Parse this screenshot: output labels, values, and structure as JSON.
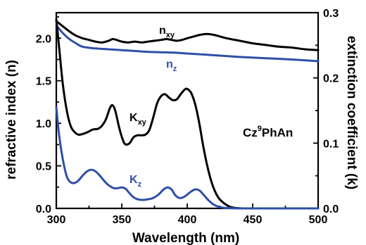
{
  "chart_data": {
    "type": "line",
    "title": "",
    "xlabel": "Wavelength (nm)",
    "ylabel_left": "refractive index (n)",
    "ylabel_right": "extinction coefficient (k)",
    "xlim": [
      300,
      500
    ],
    "ylim_left": [
      0,
      2.3
    ],
    "ylim_right": [
      0,
      0.3
    ],
    "xticks": [
      300,
      350,
      400,
      450,
      500
    ],
    "yticks_left": [
      "0.0",
      "0.5",
      "1.0",
      "1.5",
      "2.0"
    ],
    "yticks_right": [
      "0.0",
      "0.1",
      "0.2",
      "0.3"
    ],
    "grid": false,
    "legend": "none",
    "annotation": {
      "base": "Cz",
      "sup": "9",
      "rest": "PhAn"
    },
    "series": [
      {
        "name": "nxy",
        "label_main": "n",
        "label_sub": "xy",
        "axis": "left",
        "color": "#000000",
        "points": [
          [
            300,
            2.2
          ],
          [
            305,
            2.14
          ],
          [
            310,
            2.08
          ],
          [
            315,
            2.03
          ],
          [
            320,
            2.0
          ],
          [
            325,
            1.98
          ],
          [
            330,
            1.96
          ],
          [
            335,
            1.95
          ],
          [
            340,
            1.97
          ],
          [
            343,
            1.99
          ],
          [
            346,
            1.98
          ],
          [
            350,
            1.96
          ],
          [
            355,
            1.95
          ],
          [
            360,
            1.96
          ],
          [
            365,
            1.95
          ],
          [
            370,
            1.96
          ],
          [
            375,
            1.97
          ],
          [
            380,
            1.98
          ],
          [
            384,
            1.99
          ],
          [
            388,
            1.98
          ],
          [
            392,
            1.97
          ],
          [
            396,
            1.98
          ],
          [
            400,
            2.0
          ],
          [
            405,
            2.02
          ],
          [
            410,
            2.04
          ],
          [
            415,
            2.05
          ],
          [
            420,
            2.04
          ],
          [
            425,
            2.02
          ],
          [
            430,
            2.0
          ],
          [
            440,
            1.97
          ],
          [
            450,
            1.94
          ],
          [
            460,
            1.92
          ],
          [
            470,
            1.9
          ],
          [
            480,
            1.89
          ],
          [
            490,
            1.87
          ],
          [
            500,
            1.86
          ]
        ]
      },
      {
        "name": "nz",
        "label_main": "n",
        "label_sub": "z",
        "axis": "left",
        "color": "#2e4fa8",
        "points": [
          [
            300,
            2.15
          ],
          [
            305,
            2.06
          ],
          [
            310,
            1.99
          ],
          [
            315,
            1.94
          ],
          [
            320,
            1.9
          ],
          [
            330,
            1.88
          ],
          [
            340,
            1.87
          ],
          [
            350,
            1.86
          ],
          [
            360,
            1.85
          ],
          [
            370,
            1.84
          ],
          [
            380,
            1.835
          ],
          [
            390,
            1.83
          ],
          [
            400,
            1.82
          ],
          [
            420,
            1.8
          ],
          [
            440,
            1.78
          ],
          [
            460,
            1.765
          ],
          [
            480,
            1.75
          ],
          [
            500,
            1.73
          ]
        ]
      },
      {
        "name": "Kxy",
        "label_main": "K",
        "label_sub": "xy",
        "axis": "right",
        "color": "#000000",
        "points": [
          [
            300,
            0.29
          ],
          [
            302,
            0.25
          ],
          [
            305,
            0.19
          ],
          [
            308,
            0.15
          ],
          [
            311,
            0.126
          ],
          [
            314,
            0.117
          ],
          [
            317,
            0.113
          ],
          [
            320,
            0.114
          ],
          [
            324,
            0.117
          ],
          [
            328,
            0.121
          ],
          [
            332,
            0.122
          ],
          [
            335,
            0.127
          ],
          [
            338,
            0.137
          ],
          [
            341,
            0.154
          ],
          [
            343,
            0.158
          ],
          [
            345,
            0.15
          ],
          [
            348,
            0.124
          ],
          [
            351,
            0.104
          ],
          [
            353,
            0.098
          ],
          [
            356,
            0.1
          ],
          [
            359,
            0.109
          ],
          [
            362,
            0.112
          ],
          [
            365,
            0.112
          ],
          [
            368,
            0.113
          ],
          [
            371,
            0.12
          ],
          [
            374,
            0.139
          ],
          [
            377,
            0.161
          ],
          [
            380,
            0.172
          ],
          [
            383,
            0.175
          ],
          [
            386,
            0.17
          ],
          [
            389,
            0.166
          ],
          [
            392,
            0.167
          ],
          [
            395,
            0.175
          ],
          [
            398,
            0.182
          ],
          [
            400,
            0.183
          ],
          [
            403,
            0.177
          ],
          [
            406,
            0.16
          ],
          [
            409,
            0.133
          ],
          [
            412,
            0.098
          ],
          [
            415,
            0.068
          ],
          [
            418,
            0.044
          ],
          [
            421,
            0.027
          ],
          [
            424,
            0.016
          ],
          [
            428,
            0.008
          ],
          [
            432,
            0.003
          ],
          [
            436,
            0.001
          ],
          [
            440,
            0.0003
          ],
          [
            445,
            0.0
          ],
          [
            450,
            0.0
          ],
          [
            460,
            0.0
          ],
          [
            480,
            0.0
          ],
          [
            500,
            0.0
          ]
        ]
      },
      {
        "name": "Kz",
        "label_main": "K",
        "label_sub": "z",
        "axis": "right",
        "color": "#2e4fa8",
        "points": [
          [
            300,
            0.155
          ],
          [
            302,
            0.115
          ],
          [
            305,
            0.075
          ],
          [
            308,
            0.049
          ],
          [
            311,
            0.04
          ],
          [
            314,
            0.039
          ],
          [
            317,
            0.043
          ],
          [
            320,
            0.05
          ],
          [
            323,
            0.056
          ],
          [
            326,
            0.059
          ],
          [
            329,
            0.058
          ],
          [
            332,
            0.053
          ],
          [
            335,
            0.046
          ],
          [
            338,
            0.039
          ],
          [
            341,
            0.034
          ],
          [
            344,
            0.031
          ],
          [
            347,
            0.031
          ],
          [
            350,
            0.032
          ],
          [
            353,
            0.03
          ],
          [
            356,
            0.023
          ],
          [
            359,
            0.017
          ],
          [
            362,
            0.014
          ],
          [
            366,
            0.013
          ],
          [
            370,
            0.014
          ],
          [
            374,
            0.016
          ],
          [
            378,
            0.021
          ],
          [
            382,
            0.029
          ],
          [
            385,
            0.032
          ],
          [
            388,
            0.029
          ],
          [
            391,
            0.02
          ],
          [
            394,
            0.016
          ],
          [
            397,
            0.017
          ],
          [
            400,
            0.021
          ],
          [
            403,
            0.026
          ],
          [
            406,
            0.029
          ],
          [
            409,
            0.028
          ],
          [
            412,
            0.022
          ],
          [
            416,
            0.013
          ],
          [
            420,
            0.006
          ],
          [
            425,
            0.002
          ],
          [
            430,
            0.0005
          ],
          [
            440,
            0.0
          ],
          [
            460,
            0.0
          ],
          [
            480,
            0.0
          ],
          [
            500,
            0.0
          ]
        ]
      }
    ]
  }
}
